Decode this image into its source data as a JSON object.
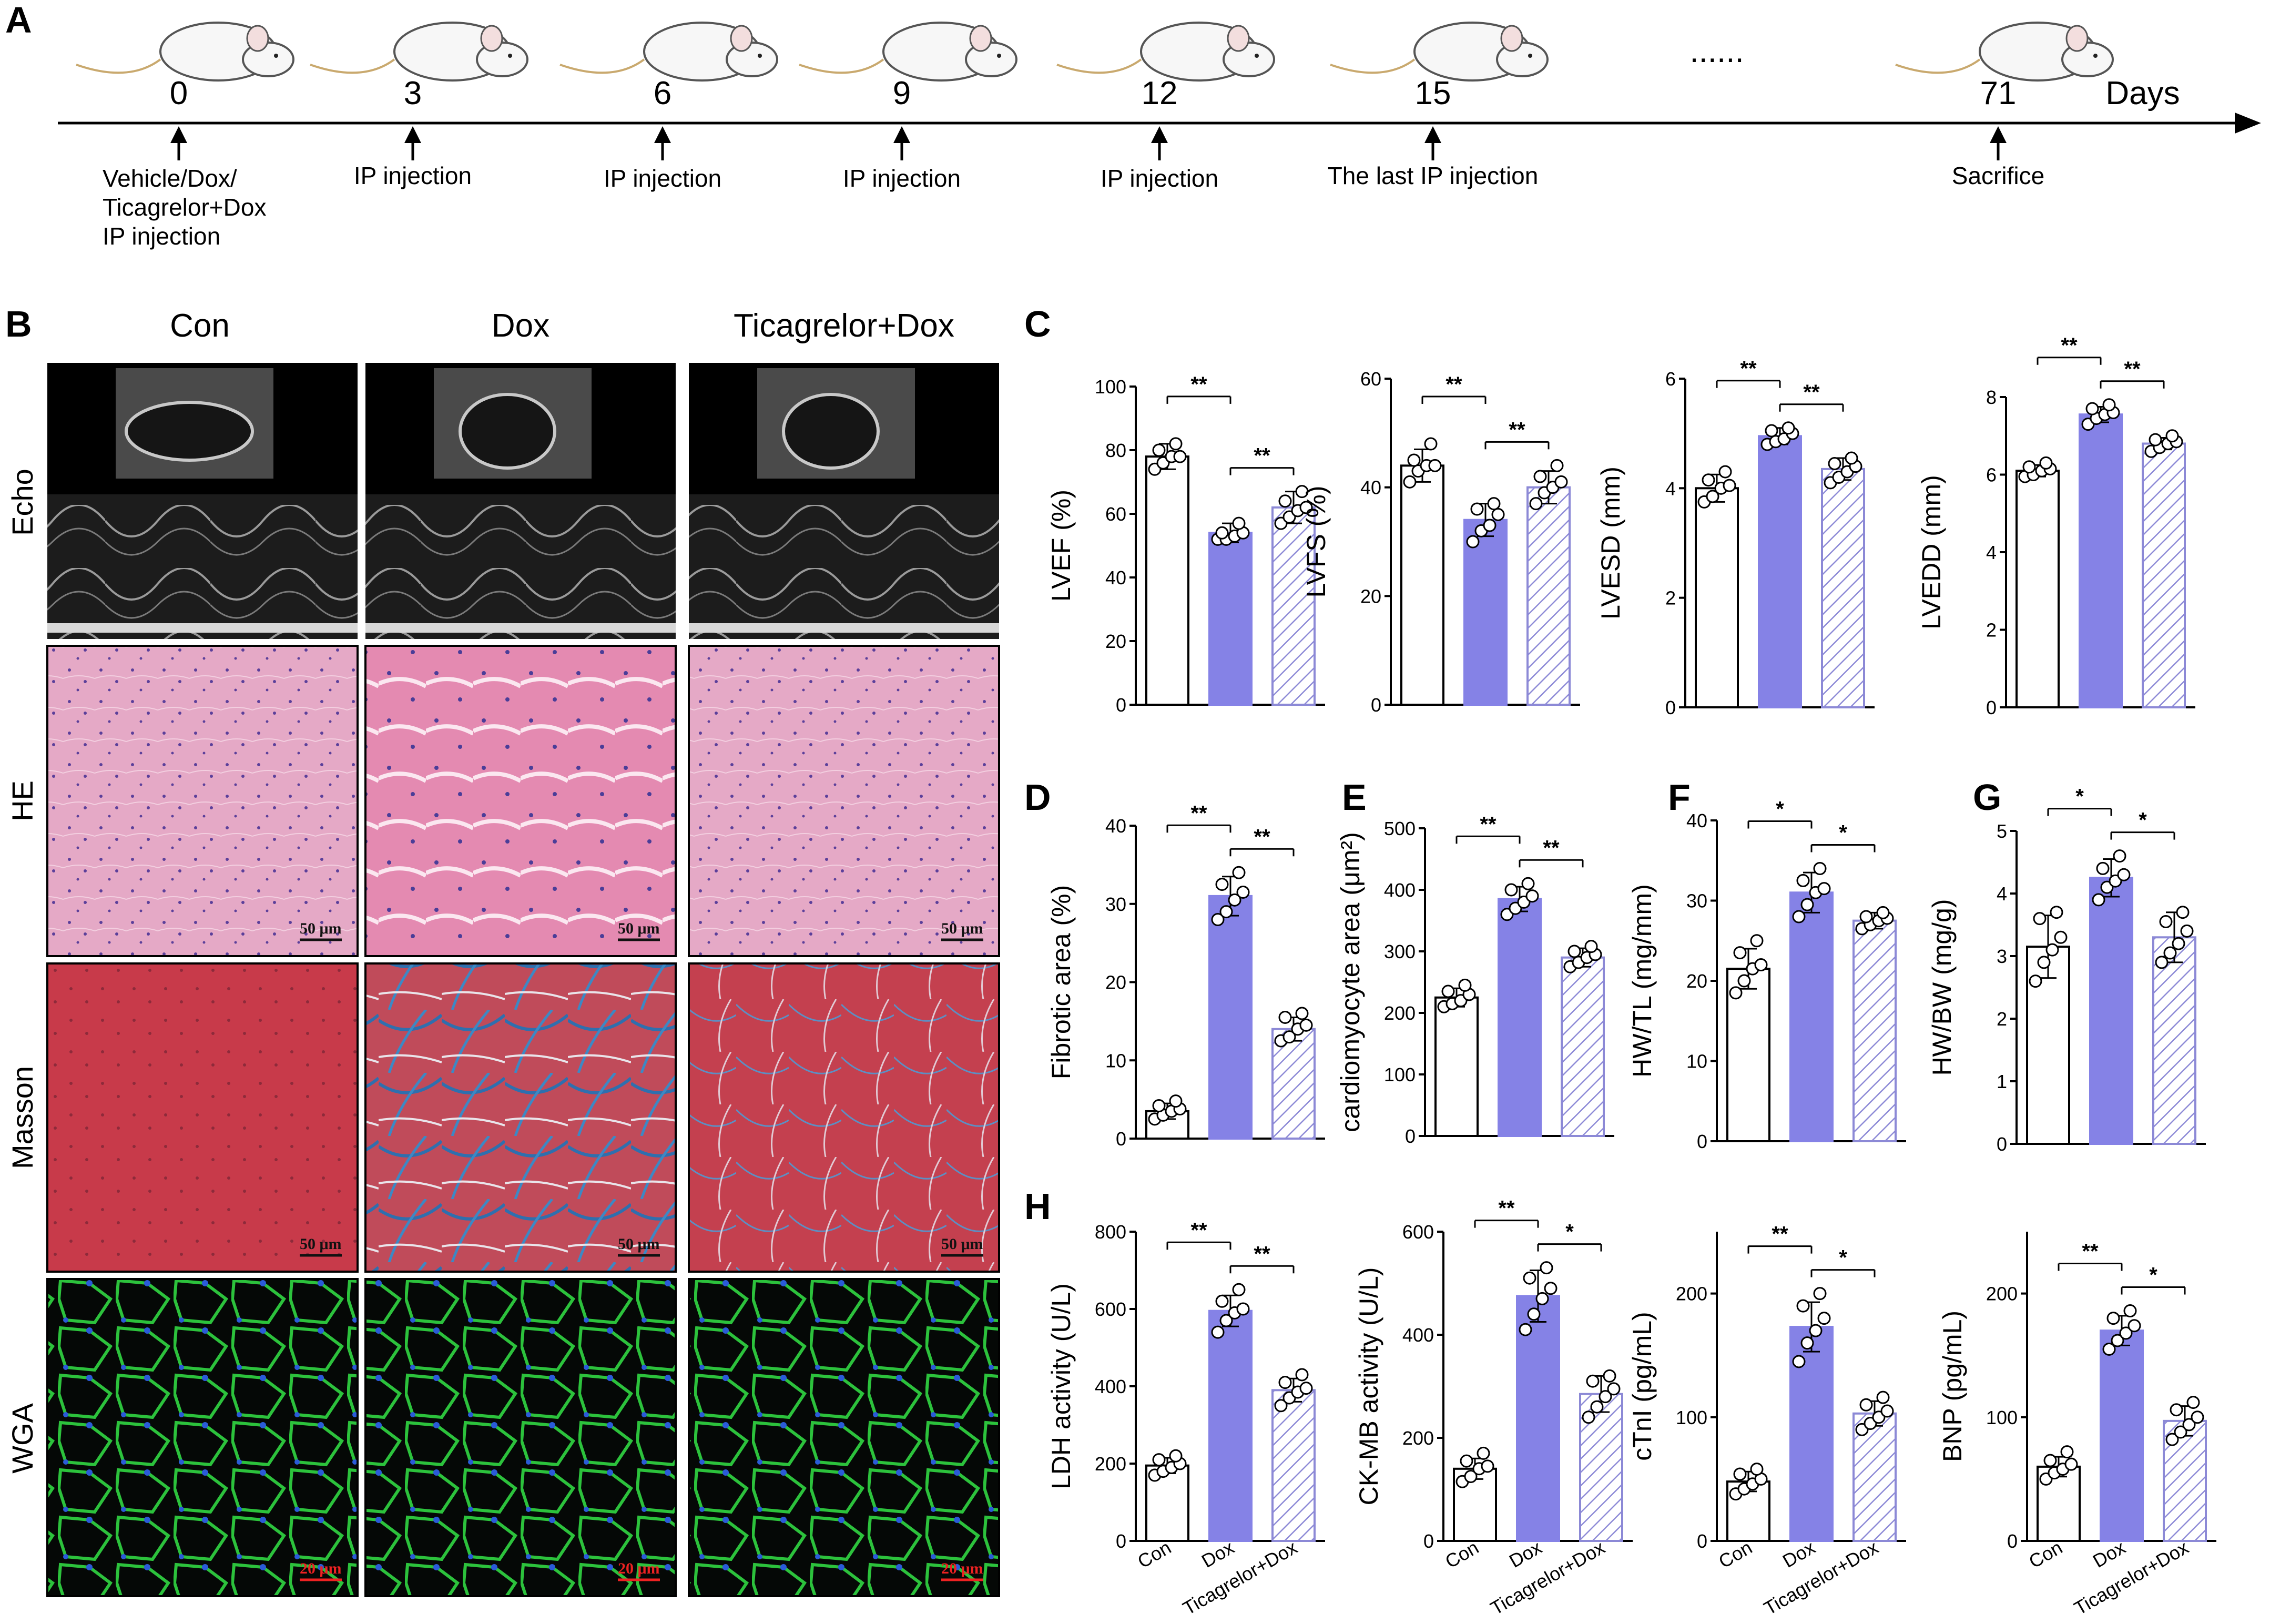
{
  "panel_labels": [
    "A",
    "B",
    "C",
    "D",
    "E",
    "F",
    "G",
    "H"
  ],
  "timeline": {
    "days": [
      "0",
      "3",
      "6",
      "9",
      "12",
      "15",
      "71"
    ],
    "ellipsis": "......",
    "unit": "Days",
    "events": [
      [
        "Vehicle/Dox/",
        "Ticagrelor+Dox",
        "IP injection"
      ],
      [
        "IP injection"
      ],
      [
        "IP injection"
      ],
      [
        "IP injection"
      ],
      [
        "IP injection"
      ],
      [
        "The last IP injection"
      ],
      [
        "Sacrifice"
      ]
    ]
  },
  "histology": {
    "columns": [
      "Con",
      "Dox",
      "Ticagrelor+Dox"
    ],
    "rows": [
      "Echo",
      "HE",
      "Masson",
      "WGA"
    ],
    "scale_bars": {
      "HE": "50 μm",
      "Masson": "50 μm",
      "WGA": "20 μm"
    }
  },
  "groups": [
    "Con",
    "Dox",
    "Ticagrelor+Dox"
  ],
  "colors": {
    "con": "#ffffff",
    "dox": "#8582e6",
    "tica_hatch": "#8c89d6",
    "axis": "#000000"
  },
  "chart_data": [
    {
      "type": "bar",
      "ylabel": "LVEF (%)",
      "ylim": [
        0,
        100
      ],
      "ticks": [
        0,
        20,
        40,
        60,
        80,
        100
      ],
      "categories": [
        "Con",
        "Dox",
        "Ticagrelor+Dox"
      ],
      "values": [
        78,
        54,
        62
      ],
      "sd": [
        4,
        3,
        5
      ],
      "points": [
        [
          74,
          76,
          78,
          78,
          80,
          82
        ],
        [
          52,
          52,
          53,
          54,
          54,
          57
        ],
        [
          57,
          59,
          61,
          62,
          64,
          67
        ]
      ],
      "sig": [
        {
          "pair": [
            0,
            1
          ],
          "label": "**"
        },
        {
          "pair": [
            1,
            2
          ],
          "label": "**"
        }
      ]
    },
    {
      "type": "bar",
      "ylabel": "LVFS (%)",
      "ylim": [
        0,
        60
      ],
      "ticks": [
        0,
        20,
        40,
        60
      ],
      "categories": [
        "Con",
        "Dox",
        "Ticagrelor+Dox"
      ],
      "values": [
        44,
        34,
        40
      ],
      "sd": [
        3,
        3,
        3
      ],
      "points": [
        [
          41,
          43,
          44,
          44,
          45,
          48
        ],
        [
          30,
          32,
          33,
          35,
          36,
          37
        ],
        [
          37,
          39,
          40,
          41,
          42,
          44
        ]
      ],
      "sig": [
        {
          "pair": [
            0,
            1
          ],
          "label": "**"
        },
        {
          "pair": [
            1,
            2
          ],
          "label": "**"
        }
      ]
    },
    {
      "type": "bar",
      "ylabel": "LVESD (mm)",
      "ylim": [
        0,
        6
      ],
      "ticks": [
        0,
        2,
        4,
        6
      ],
      "categories": [
        "Con",
        "Dox",
        "Ticagrelor+Dox"
      ],
      "values": [
        4.0,
        4.95,
        4.35
      ],
      "sd": [
        0.25,
        0.15,
        0.2
      ],
      "points": [
        [
          3.75,
          3.85,
          4.0,
          4.05,
          4.15,
          4.3
        ],
        [
          4.8,
          4.85,
          4.9,
          5.0,
          5.05,
          5.1
        ],
        [
          4.1,
          4.2,
          4.3,
          4.4,
          4.45,
          4.55
        ]
      ],
      "sig": [
        {
          "pair": [
            0,
            1
          ],
          "label": "**"
        },
        {
          "pair": [
            1,
            2
          ],
          "label": "**"
        }
      ]
    },
    {
      "type": "bar",
      "ylabel": "LVEDD (mm)",
      "ylim": [
        0,
        8
      ],
      "ticks": [
        0,
        2,
        4,
        6,
        8
      ],
      "categories": [
        "Con",
        "Dox",
        "Ticagrelor+Dox"
      ],
      "values": [
        6.1,
        7.55,
        6.8
      ],
      "sd": [
        0.15,
        0.2,
        0.15
      ],
      "points": [
        [
          5.95,
          6.0,
          6.1,
          6.15,
          6.2,
          6.3
        ],
        [
          7.3,
          7.45,
          7.55,
          7.6,
          7.7,
          7.8
        ],
        [
          6.6,
          6.7,
          6.8,
          6.85,
          6.9,
          7.0
        ]
      ],
      "sig": [
        {
          "pair": [
            0,
            1
          ],
          "label": "**"
        },
        {
          "pair": [
            1,
            2
          ],
          "label": "**"
        }
      ]
    },
    {
      "type": "bar",
      "ylabel": "Fibrotic area (%)",
      "ylim": [
        0,
        40
      ],
      "ticks": [
        0,
        10,
        20,
        30,
        40
      ],
      "categories": [
        "Con",
        "Dox",
        "Ticagrelor+Dox"
      ],
      "values": [
        3.5,
        31,
        14
      ],
      "sd": [
        1,
        2.5,
        1.5
      ],
      "points": [
        [
          2.5,
          3,
          3.5,
          3.8,
          4.2,
          4.8
        ],
        [
          28,
          29,
          30.5,
          31.5,
          32.5,
          34
        ],
        [
          12.5,
          13,
          14,
          14.5,
          15.5,
          16
        ]
      ],
      "sig": [
        {
          "pair": [
            0,
            1
          ],
          "label": "**"
        },
        {
          "pair": [
            1,
            2
          ],
          "label": "**"
        }
      ]
    },
    {
      "type": "bar",
      "ylabel": "cardiomyocyte area (μm²)",
      "ylim": [
        0,
        500
      ],
      "ticks": [
        0,
        100,
        200,
        300,
        400,
        500
      ],
      "categories": [
        "Con",
        "Dox",
        "Ticagrelor+Dox"
      ],
      "values": [
        225,
        385,
        290
      ],
      "sd": [
        15,
        20,
        15
      ],
      "points": [
        [
          210,
          215,
          220,
          230,
          235,
          245
        ],
        [
          360,
          370,
          380,
          390,
          400,
          410
        ],
        [
          275,
          282,
          290,
          295,
          300,
          308
        ]
      ],
      "sig": [
        {
          "pair": [
            0,
            1
          ],
          "label": "**"
        },
        {
          "pair": [
            1,
            2
          ],
          "label": "**"
        }
      ]
    },
    {
      "type": "bar",
      "ylabel": "HW/TL (mg/mm)",
      "ylim": [
        0,
        40
      ],
      "ticks": [
        0,
        10,
        20,
        30,
        40
      ],
      "categories": [
        "Con",
        "Dox",
        "Ticagrelor+Dox"
      ],
      "values": [
        21.5,
        31,
        27.5
      ],
      "sd": [
        2.5,
        2.5,
        1
      ],
      "points": [
        [
          18.5,
          20,
          21.5,
          22,
          23.5,
          25
        ],
        [
          28,
          29.5,
          31,
          31.5,
          32.5,
          34
        ],
        [
          26.5,
          27,
          27.5,
          27.8,
          28,
          28.5
        ]
      ],
      "sig": [
        {
          "pair": [
            0,
            1
          ],
          "label": "*"
        },
        {
          "pair": [
            1,
            2
          ],
          "label": "*"
        }
      ]
    },
    {
      "type": "bar",
      "ylabel": "HW/BW (mg/g)",
      "ylim": [
        0,
        5
      ],
      "ticks": [
        0,
        1,
        2,
        3,
        4,
        5
      ],
      "categories": [
        "Con",
        "Dox",
        "Ticagrelor+Dox"
      ],
      "values": [
        3.15,
        4.25,
        3.3
      ],
      "sd": [
        0.5,
        0.3,
        0.4
      ],
      "points": [
        [
          2.6,
          2.9,
          3.1,
          3.3,
          3.6,
          3.7
        ],
        [
          3.9,
          4.1,
          4.2,
          4.3,
          4.4,
          4.6
        ],
        [
          2.9,
          3.05,
          3.2,
          3.4,
          3.55,
          3.7
        ]
      ],
      "sig": [
        {
          "pair": [
            0,
            1
          ],
          "label": "*"
        },
        {
          "pair": [
            1,
            2
          ],
          "label": "*"
        }
      ]
    },
    {
      "type": "bar",
      "ylabel": "LDH activity (U/L)",
      "ylim": [
        0,
        800
      ],
      "ticks": [
        0,
        200,
        400,
        600,
        800
      ],
      "categories": [
        "Con",
        "Dox",
        "Ticagrelor+Dox"
      ],
      "values": [
        195,
        595,
        390
      ],
      "sd": [
        20,
        40,
        30
      ],
      "points": [
        [
          170,
          180,
          190,
          200,
          210,
          220
        ],
        [
          540,
          570,
          590,
          600,
          620,
          650
        ],
        [
          350,
          370,
          385,
          395,
          410,
          430
        ]
      ],
      "sig": [
        {
          "pair": [
            0,
            1
          ],
          "label": "**"
        },
        {
          "pair": [
            1,
            2
          ],
          "label": "**"
        }
      ]
    },
    {
      "type": "bar",
      "ylabel": "CK-MB activity (U/L)",
      "ylim": [
        0,
        600
      ],
      "ticks": [
        0,
        200,
        400,
        600
      ],
      "categories": [
        "Con",
        "Dox",
        "Ticagrelor+Dox"
      ],
      "values": [
        140,
        475,
        285
      ],
      "sd": [
        20,
        50,
        35
      ],
      "points": [
        [
          115,
          125,
          140,
          145,
          155,
          170
        ],
        [
          410,
          440,
          470,
          490,
          510,
          530
        ],
        [
          240,
          260,
          280,
          295,
          310,
          320
        ]
      ],
      "sig": [
        {
          "pair": [
            0,
            1
          ],
          "label": "**"
        },
        {
          "pair": [
            1,
            2
          ],
          "label": "*"
        }
      ]
    },
    {
      "type": "bar",
      "ylabel": "cTnI (pg/mL)",
      "ylim": [
        0,
        250
      ],
      "ticks": [
        0,
        100,
        200
      ],
      "categories": [
        "Con",
        "Dox",
        "Ticagrelor+Dox"
      ],
      "values": [
        48,
        173,
        103
      ],
      "sd": [
        8,
        20,
        10
      ],
      "points": [
        [
          38,
          42,
          46,
          50,
          54,
          58
        ],
        [
          145,
          160,
          170,
          180,
          190,
          200
        ],
        [
          90,
          95,
          100,
          105,
          110,
          116
        ]
      ],
      "sig": [
        {
          "pair": [
            0,
            1
          ],
          "label": "**"
        },
        {
          "pair": [
            1,
            2
          ],
          "label": "*"
        }
      ]
    },
    {
      "type": "bar",
      "ylabel": "BNP (pg/mL)",
      "ylim": [
        0,
        250
      ],
      "ticks": [
        0,
        100,
        200
      ],
      "categories": [
        "Con",
        "Dox",
        "Ticagrelor+Dox"
      ],
      "values": [
        60,
        170,
        97
      ],
      "sd": [
        8,
        12,
        12
      ],
      "points": [
        [
          50,
          55,
          58,
          62,
          65,
          72
        ],
        [
          155,
          162,
          168,
          174,
          180,
          186
        ],
        [
          82,
          88,
          94,
          100,
          106,
          112
        ]
      ],
      "sig": [
        {
          "pair": [
            0,
            1
          ],
          "label": "**"
        },
        {
          "pair": [
            1,
            2
          ],
          "label": "*"
        }
      ]
    }
  ]
}
